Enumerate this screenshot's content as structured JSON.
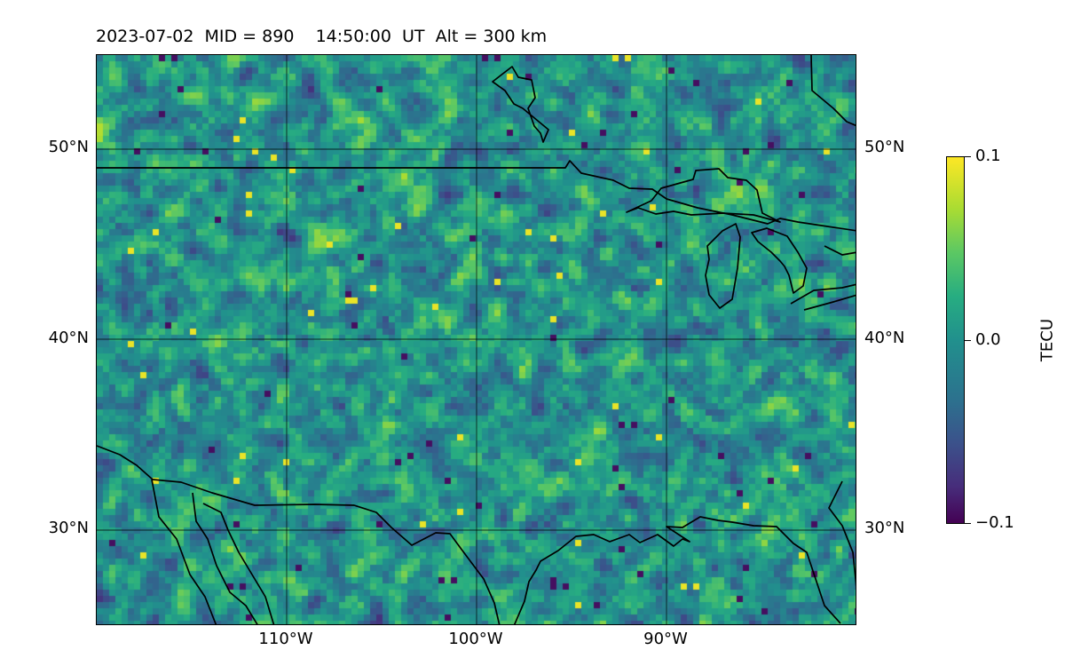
{
  "header": {
    "date": "2023-07-02",
    "mid_text": "MID = 890",
    "time_text": "14:50:00  UT",
    "alt_text": "Alt = 300 km"
  },
  "map": {
    "lat_labels": [
      "50°N",
      "40°N",
      "30°N"
    ],
    "lon_labels": [
      "110°W",
      "100°W",
      "90°W"
    ],
    "extent": {
      "lon": [
        -120,
        -80
      ],
      "lat": [
        25,
        55
      ]
    },
    "colormap": "viridis",
    "features": [
      "coastlines",
      "international-borders",
      "great-lakes",
      "gridlines"
    ]
  },
  "colorbar": {
    "label": "TECU",
    "ticks": [
      "0.1",
      "0.0",
      "−0.1"
    ],
    "range": [
      -0.1,
      0.1
    ],
    "colors": {
      "low": "#440154",
      "mid": "#21908d",
      "high": "#fde725"
    }
  }
}
